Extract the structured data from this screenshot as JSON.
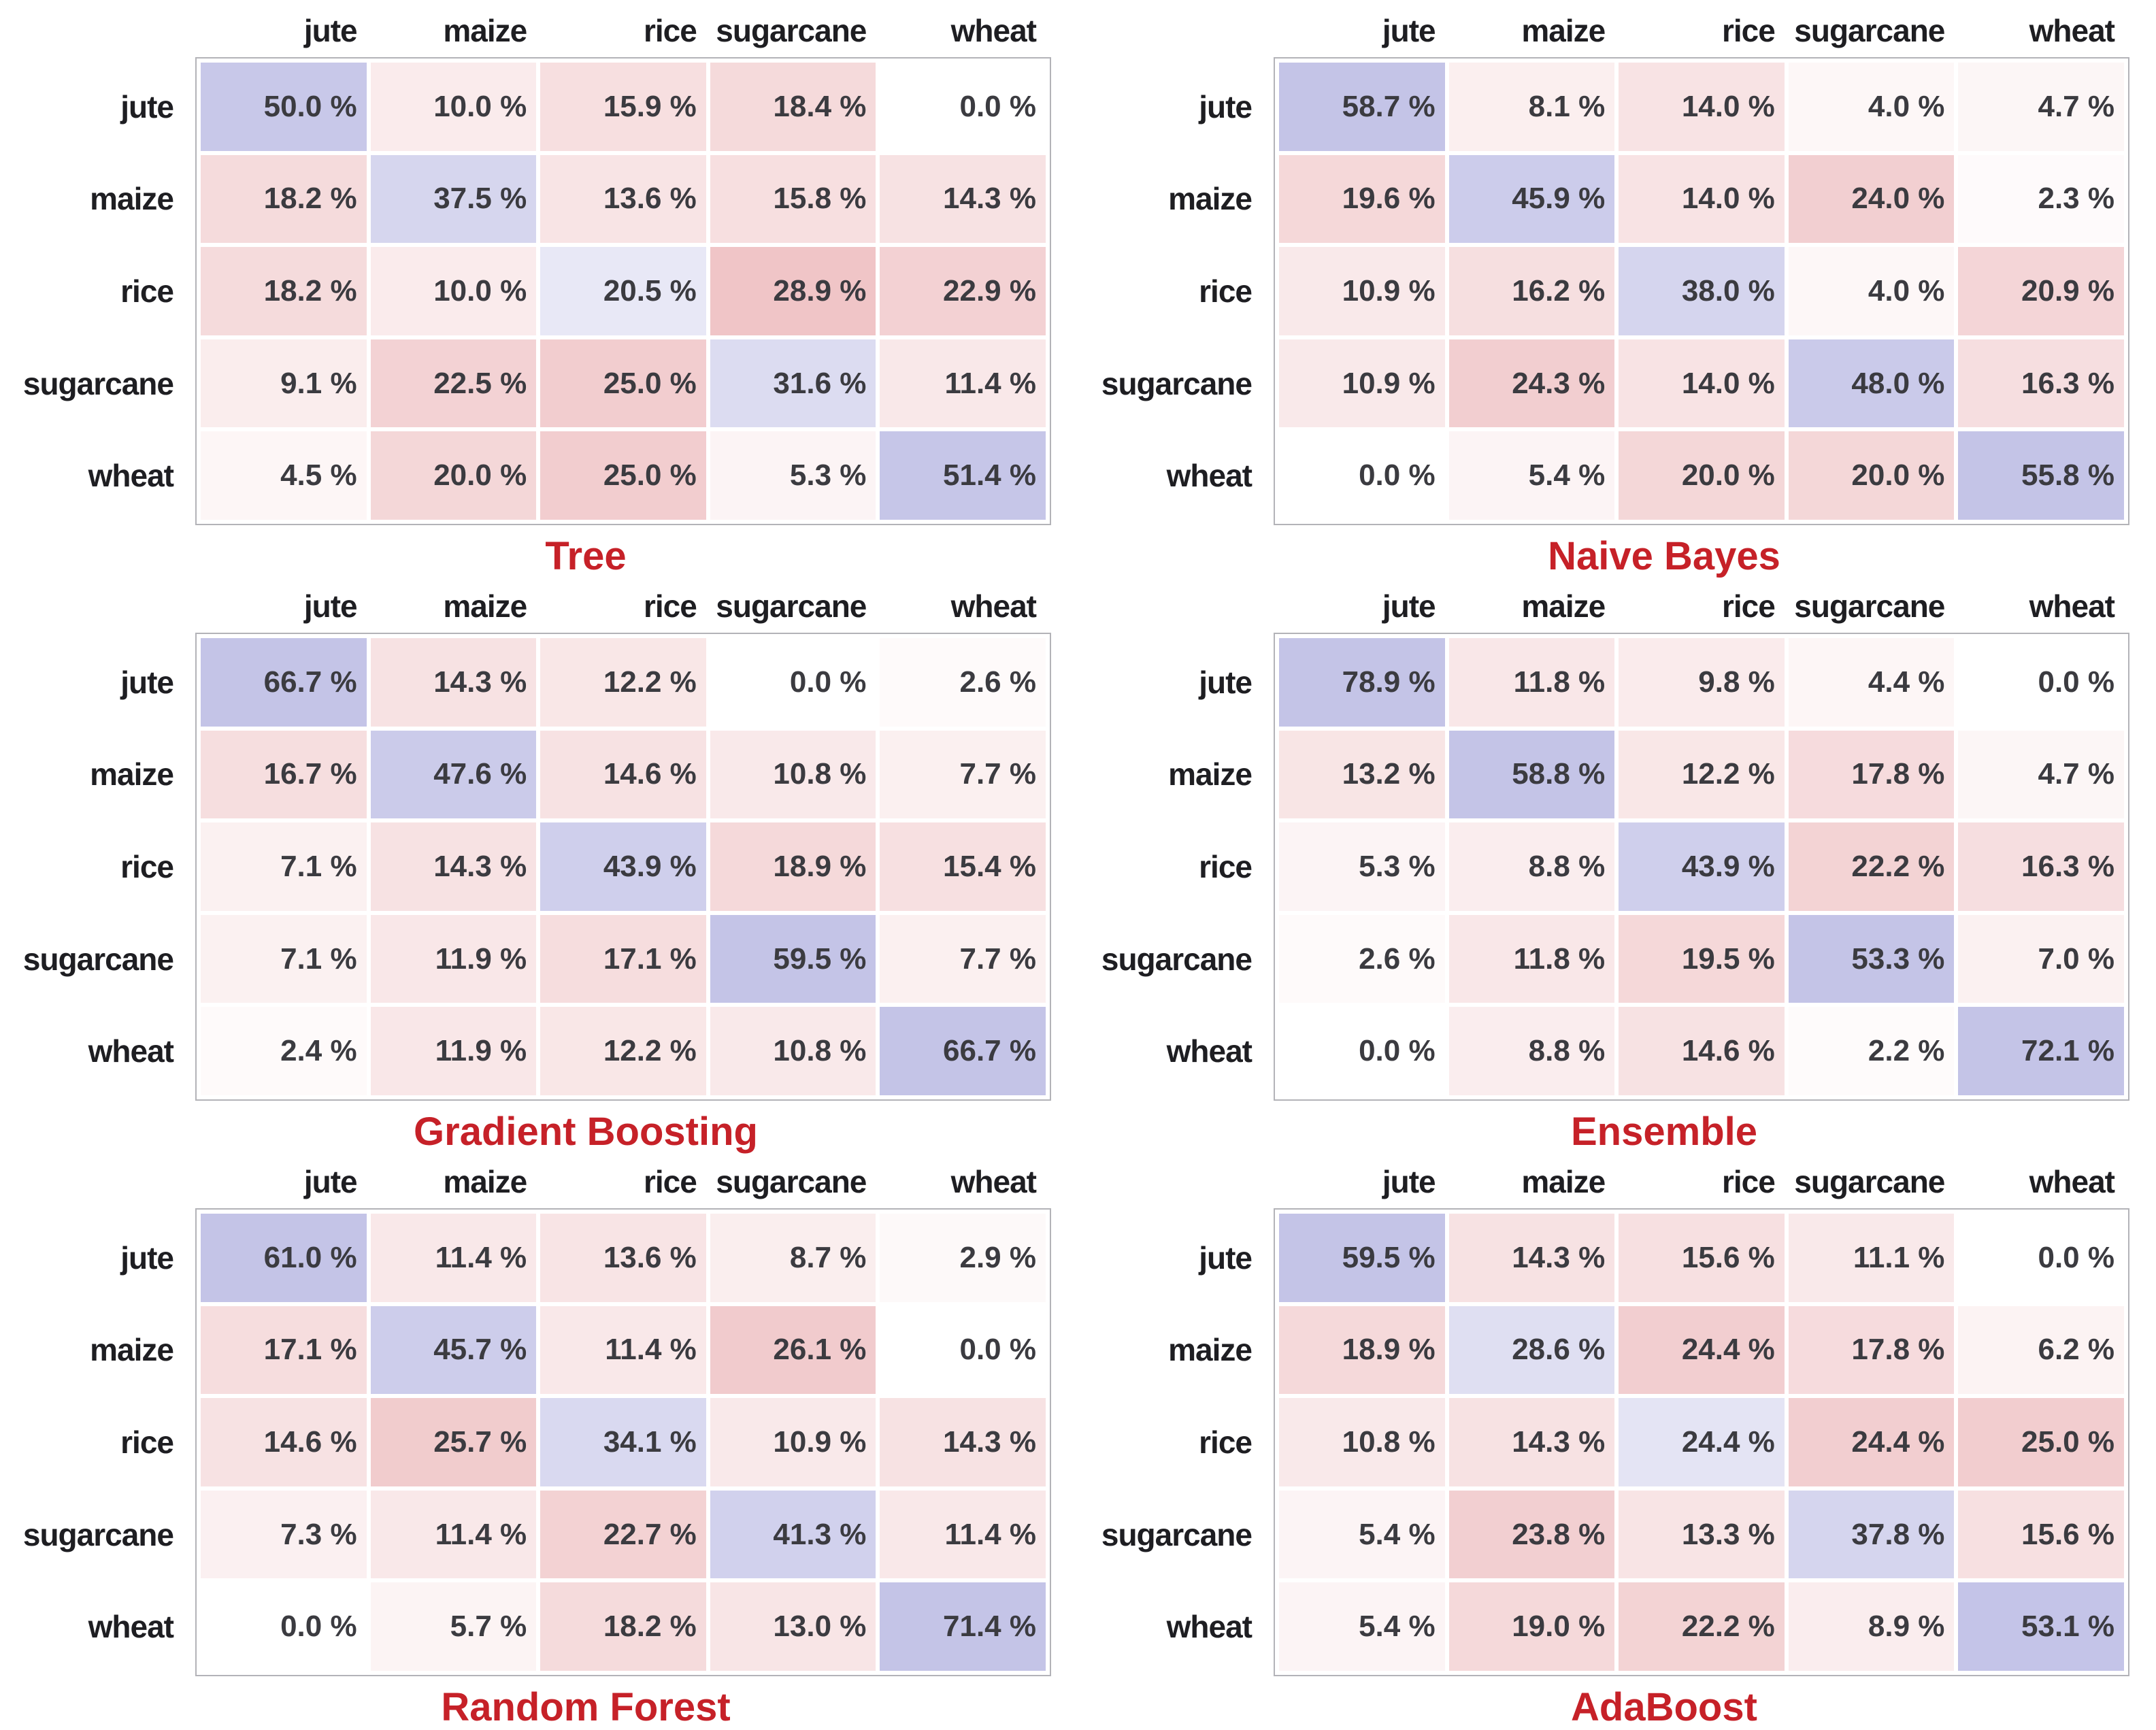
{
  "colors": {
    "diagonal_base": "#6c6cc4",
    "off_diagonal_base": "#d97075",
    "zero_cell": "#ffffff",
    "title_red": "#c62128",
    "cell_text": "#3b3b40",
    "label_text": "#1e1e22",
    "grid_border": "#b3b3b8"
  },
  "value_suffix": " %",
  "chart_data": {
    "type": "heatmap",
    "subtype": "confusion-matrix-grid",
    "value_unit": "%",
    "legend_position": "none",
    "grid": "white-gaps-between-cells",
    "predicted_labels": [
      "jute",
      "maize",
      "rice",
      "sugarcane",
      "wheat"
    ],
    "actual_labels": [
      "jute",
      "maize",
      "rice",
      "sugarcane",
      "wheat"
    ],
    "matrices": [
      {
        "title": "Tree",
        "rows": [
          [
            50.0,
            10.0,
            15.9,
            18.4,
            0.0
          ],
          [
            18.2,
            37.5,
            13.6,
            15.8,
            14.3
          ],
          [
            18.2,
            10.0,
            20.5,
            28.9,
            22.9
          ],
          [
            9.1,
            22.5,
            25.0,
            31.6,
            11.4
          ],
          [
            4.5,
            20.0,
            25.0,
            5.3,
            51.4
          ]
        ]
      },
      {
        "title": "Naive Bayes",
        "rows": [
          [
            58.7,
            8.1,
            14.0,
            4.0,
            4.7
          ],
          [
            19.6,
            45.9,
            14.0,
            24.0,
            2.3
          ],
          [
            10.9,
            16.2,
            38.0,
            4.0,
            20.9
          ],
          [
            10.9,
            24.3,
            14.0,
            48.0,
            16.3
          ],
          [
            0.0,
            5.4,
            20.0,
            20.0,
            55.8
          ]
        ]
      },
      {
        "title": "Gradient Boosting",
        "rows": [
          [
            66.7,
            14.3,
            12.2,
            0.0,
            2.6
          ],
          [
            16.7,
            47.6,
            14.6,
            10.8,
            7.7
          ],
          [
            7.1,
            14.3,
            43.9,
            18.9,
            15.4
          ],
          [
            7.1,
            11.9,
            17.1,
            59.5,
            7.7
          ],
          [
            2.4,
            11.9,
            12.2,
            10.8,
            66.7
          ]
        ]
      },
      {
        "title": "Ensemble",
        "rows": [
          [
            78.9,
            11.8,
            9.8,
            4.4,
            0.0
          ],
          [
            13.2,
            58.8,
            12.2,
            17.8,
            4.7
          ],
          [
            5.3,
            8.8,
            43.9,
            22.2,
            16.3
          ],
          [
            2.6,
            11.8,
            19.5,
            53.3,
            7.0
          ],
          [
            0.0,
            8.8,
            14.6,
            2.2,
            72.1
          ]
        ]
      },
      {
        "title": "Random Forest",
        "rows": [
          [
            61.0,
            11.4,
            13.6,
            8.7,
            2.9
          ],
          [
            17.1,
            45.7,
            11.4,
            26.1,
            0.0
          ],
          [
            14.6,
            25.7,
            34.1,
            10.9,
            14.3
          ],
          [
            7.3,
            11.4,
            22.7,
            41.3,
            11.4
          ],
          [
            0.0,
            5.7,
            18.2,
            13.0,
            71.4
          ]
        ]
      },
      {
        "title": "AdaBoost",
        "rows": [
          [
            59.5,
            14.3,
            15.6,
            11.1,
            0.0
          ],
          [
            18.9,
            28.6,
            24.4,
            17.8,
            6.2
          ],
          [
            10.8,
            14.3,
            24.4,
            24.4,
            25.0
          ],
          [
            5.4,
            23.8,
            13.3,
            37.8,
            15.6
          ],
          [
            5.4,
            19.0,
            22.2,
            8.9,
            53.1
          ]
        ]
      }
    ]
  }
}
